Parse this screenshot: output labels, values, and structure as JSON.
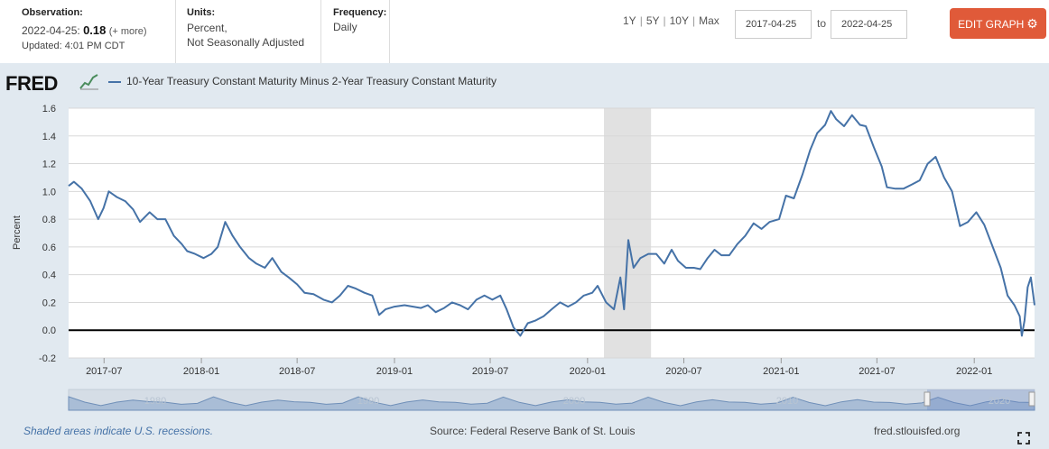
{
  "header": {
    "observation": {
      "label": "Observation:",
      "date": "2022-04-25:",
      "value": "0.18",
      "more": "(+ more)",
      "updated": "Updated: 4:01 PM CDT"
    },
    "units": {
      "label": "Units:",
      "line1": "Percent,",
      "line2": "Not Seasonally Adjusted"
    },
    "frequency": {
      "label": "Frequency:",
      "value": "Daily"
    },
    "ranges": [
      "1Y",
      "5Y",
      "10Y",
      "Max"
    ],
    "date_from": "2017-04-25",
    "to_label": "to",
    "date_to": "2022-04-25",
    "edit_label": "EDIT GRAPH"
  },
  "logo_text": "FRED",
  "footer": {
    "note": "Shaded areas indicate U.S. recessions.",
    "source": "Source: Federal Reserve Bank of St. Louis",
    "url": "fred.stlouisfed.org"
  },
  "navigator": {
    "labels": [
      "1980",
      "1990",
      "2000",
      "2010",
      "2020"
    ]
  },
  "colors": {
    "series": "#4572a7",
    "panel": "#e1e9f0",
    "recession": "#e1e1e1",
    "accent": "#e05a39"
  },
  "chart_data": {
    "type": "line",
    "title": "10-Year Treasury Constant Maturity Minus 2-Year Treasury Constant Maturity",
    "xlabel": "",
    "ylabel": "Percent",
    "ylim": [
      -0.2,
      1.6
    ],
    "xlim": [
      "2017-04-25",
      "2022-04-25"
    ],
    "yticks": [
      -0.2,
      0.0,
      0.2,
      0.4,
      0.6,
      0.8,
      1.0,
      1.2,
      1.4,
      1.6
    ],
    "xticks": [
      {
        "date": "2017-07-01",
        "label": "2017-07"
      },
      {
        "date": "2018-01-01",
        "label": "2018-01"
      },
      {
        "date": "2018-07-01",
        "label": "2018-07"
      },
      {
        "date": "2019-01-01",
        "label": "2019-01"
      },
      {
        "date": "2019-07-01",
        "label": "2019-07"
      },
      {
        "date": "2020-01-01",
        "label": "2020-01"
      },
      {
        "date": "2020-07-01",
        "label": "2020-07"
      },
      {
        "date": "2021-01-01",
        "label": "2021-01"
      },
      {
        "date": "2021-07-01",
        "label": "2021-07"
      },
      {
        "date": "2022-01-01",
        "label": "2022-01"
      }
    ],
    "recessions": [
      {
        "start": "2020-02-01",
        "end": "2020-04-30"
      }
    ],
    "zero_line": 0,
    "series": [
      {
        "name": "10-Year Treasury Constant Maturity Minus 2-Year Treasury Constant Maturity",
        "points": [
          [
            "2017-04-25",
            1.04
          ],
          [
            "2017-05-05",
            1.07
          ],
          [
            "2017-05-20",
            1.02
          ],
          [
            "2017-06-05",
            0.93
          ],
          [
            "2017-06-20",
            0.8
          ],
          [
            "2017-06-30",
            0.88
          ],
          [
            "2017-07-10",
            1.0
          ],
          [
            "2017-07-25",
            0.96
          ],
          [
            "2017-08-10",
            0.93
          ],
          [
            "2017-08-25",
            0.87
          ],
          [
            "2017-09-07",
            0.78
          ],
          [
            "2017-09-25",
            0.85
          ],
          [
            "2017-10-10",
            0.8
          ],
          [
            "2017-10-25",
            0.8
          ],
          [
            "2017-11-10",
            0.68
          ],
          [
            "2017-11-25",
            0.62
          ],
          [
            "2017-12-05",
            0.57
          ],
          [
            "2017-12-20",
            0.55
          ],
          [
            "2018-01-05",
            0.52
          ],
          [
            "2018-01-20",
            0.55
          ],
          [
            "2018-02-01",
            0.6
          ],
          [
            "2018-02-15",
            0.78
          ],
          [
            "2018-03-01",
            0.68
          ],
          [
            "2018-03-15",
            0.6
          ],
          [
            "2018-04-01",
            0.52
          ],
          [
            "2018-04-15",
            0.48
          ],
          [
            "2018-05-01",
            0.45
          ],
          [
            "2018-05-15",
            0.52
          ],
          [
            "2018-06-01",
            0.42
          ],
          [
            "2018-06-15",
            0.38
          ],
          [
            "2018-07-01",
            0.33
          ],
          [
            "2018-07-15",
            0.27
          ],
          [
            "2018-08-01",
            0.26
          ],
          [
            "2018-08-20",
            0.22
          ],
          [
            "2018-09-05",
            0.2
          ],
          [
            "2018-09-20",
            0.25
          ],
          [
            "2018-10-05",
            0.32
          ],
          [
            "2018-10-20",
            0.3
          ],
          [
            "2018-11-05",
            0.27
          ],
          [
            "2018-11-20",
            0.25
          ],
          [
            "2018-12-03",
            0.11
          ],
          [
            "2018-12-15",
            0.15
          ],
          [
            "2019-01-01",
            0.17
          ],
          [
            "2019-01-20",
            0.18
          ],
          [
            "2019-02-05",
            0.17
          ],
          [
            "2019-02-20",
            0.16
          ],
          [
            "2019-03-05",
            0.18
          ],
          [
            "2019-03-20",
            0.13
          ],
          [
            "2019-04-05",
            0.16
          ],
          [
            "2019-04-20",
            0.2
          ],
          [
            "2019-05-05",
            0.18
          ],
          [
            "2019-05-20",
            0.15
          ],
          [
            "2019-06-05",
            0.22
          ],
          [
            "2019-06-20",
            0.25
          ],
          [
            "2019-07-05",
            0.22
          ],
          [
            "2019-07-20",
            0.25
          ],
          [
            "2019-08-01",
            0.15
          ],
          [
            "2019-08-14",
            0.02
          ],
          [
            "2019-08-27",
            -0.04
          ],
          [
            "2019-09-10",
            0.05
          ],
          [
            "2019-09-25",
            0.07
          ],
          [
            "2019-10-10",
            0.1
          ],
          [
            "2019-10-25",
            0.15
          ],
          [
            "2019-11-10",
            0.2
          ],
          [
            "2019-11-25",
            0.17
          ],
          [
            "2019-12-10",
            0.2
          ],
          [
            "2019-12-25",
            0.25
          ],
          [
            "2020-01-10",
            0.27
          ],
          [
            "2020-01-20",
            0.32
          ],
          [
            "2020-02-05",
            0.2
          ],
          [
            "2020-02-20",
            0.15
          ],
          [
            "2020-03-03",
            0.38
          ],
          [
            "2020-03-10",
            0.15
          ],
          [
            "2020-03-18",
            0.65
          ],
          [
            "2020-03-28",
            0.45
          ],
          [
            "2020-04-10",
            0.52
          ],
          [
            "2020-04-25",
            0.55
          ],
          [
            "2020-05-10",
            0.55
          ],
          [
            "2020-05-25",
            0.48
          ],
          [
            "2020-06-08",
            0.58
          ],
          [
            "2020-06-20",
            0.5
          ],
          [
            "2020-07-05",
            0.45
          ],
          [
            "2020-07-20",
            0.45
          ],
          [
            "2020-08-01",
            0.44
          ],
          [
            "2020-08-15",
            0.52
          ],
          [
            "2020-08-28",
            0.58
          ],
          [
            "2020-09-10",
            0.54
          ],
          [
            "2020-09-25",
            0.54
          ],
          [
            "2020-10-10",
            0.62
          ],
          [
            "2020-10-25",
            0.68
          ],
          [
            "2020-11-10",
            0.77
          ],
          [
            "2020-11-25",
            0.73
          ],
          [
            "2020-12-10",
            0.78
          ],
          [
            "2020-12-28",
            0.8
          ],
          [
            "2021-01-10",
            0.97
          ],
          [
            "2021-01-25",
            0.95
          ],
          [
            "2021-02-10",
            1.12
          ],
          [
            "2021-02-25",
            1.3
          ],
          [
            "2021-03-10",
            1.42
          ],
          [
            "2021-03-25",
            1.48
          ],
          [
            "2021-04-05",
            1.58
          ],
          [
            "2021-04-15",
            1.52
          ],
          [
            "2021-04-30",
            1.47
          ],
          [
            "2021-05-15",
            1.55
          ],
          [
            "2021-05-30",
            1.48
          ],
          [
            "2021-06-10",
            1.47
          ],
          [
            "2021-06-25",
            1.32
          ],
          [
            "2021-07-10",
            1.18
          ],
          [
            "2021-07-20",
            1.03
          ],
          [
            "2021-08-05",
            1.02
          ],
          [
            "2021-08-20",
            1.02
          ],
          [
            "2021-09-05",
            1.05
          ],
          [
            "2021-09-20",
            1.08
          ],
          [
            "2021-10-05",
            1.2
          ],
          [
            "2021-10-20",
            1.25
          ],
          [
            "2021-11-05",
            1.1
          ],
          [
            "2021-11-20",
            1.0
          ],
          [
            "2021-12-05",
            0.75
          ],
          [
            "2021-12-20",
            0.78
          ],
          [
            "2022-01-05",
            0.85
          ],
          [
            "2022-01-20",
            0.76
          ],
          [
            "2022-02-05",
            0.6
          ],
          [
            "2022-02-20",
            0.45
          ],
          [
            "2022-03-05",
            0.25
          ],
          [
            "2022-03-18",
            0.18
          ],
          [
            "2022-03-28",
            0.1
          ],
          [
            "2022-04-01",
            -0.04
          ],
          [
            "2022-04-06",
            0.07
          ],
          [
            "2022-04-12",
            0.31
          ],
          [
            "2022-04-18",
            0.38
          ],
          [
            "2022-04-22",
            0.27
          ],
          [
            "2022-04-25",
            0.18
          ]
        ]
      }
    ]
  }
}
